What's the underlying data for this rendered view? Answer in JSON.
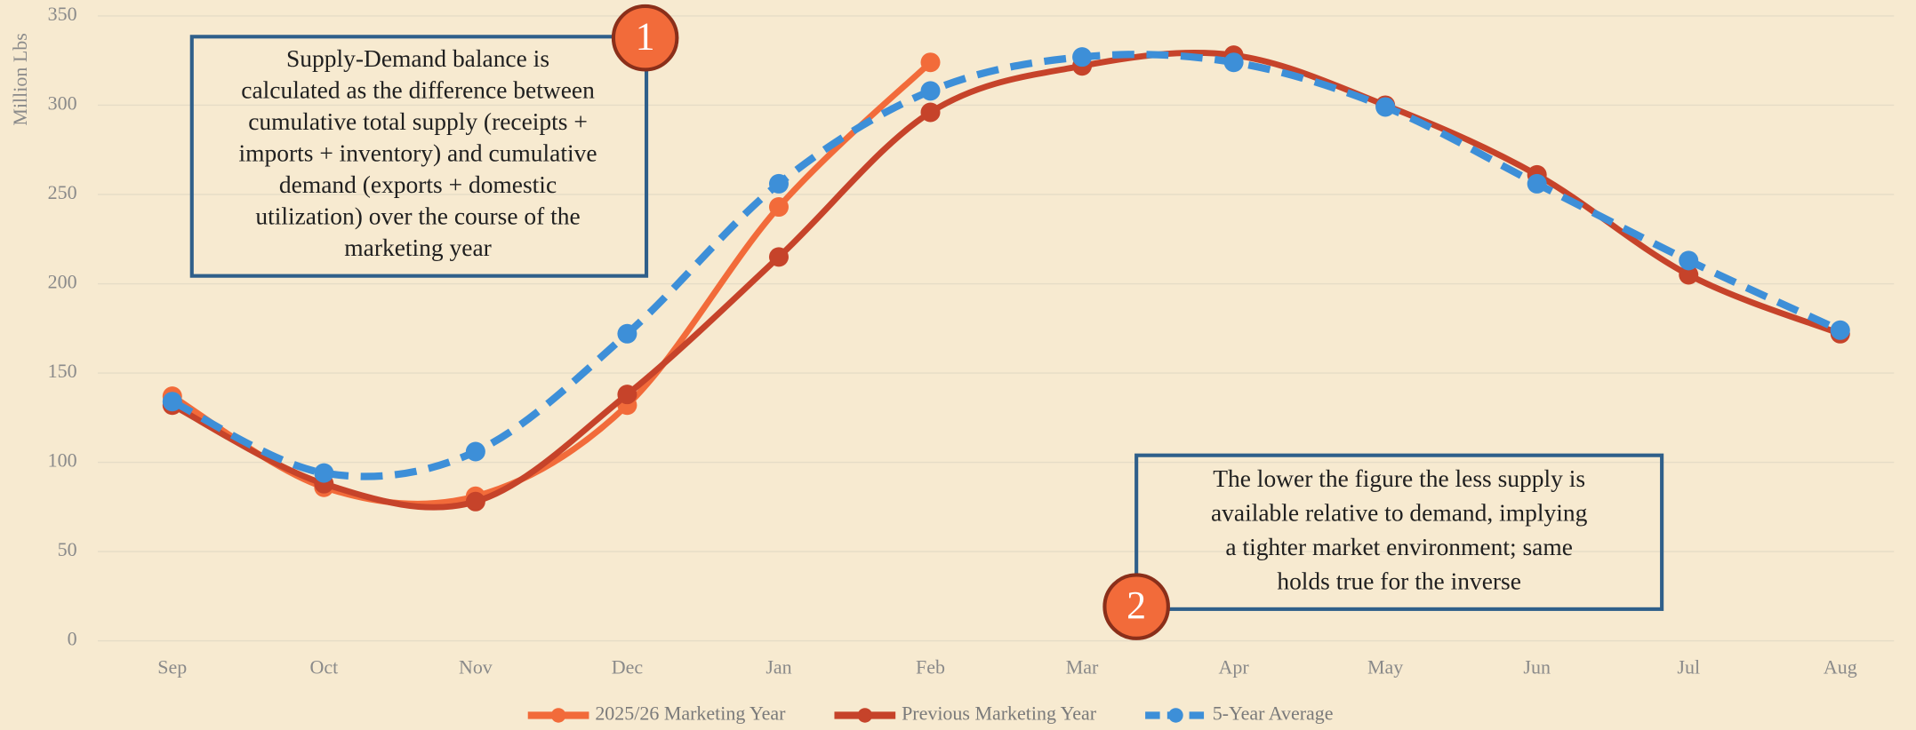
{
  "chart_data": {
    "type": "line",
    "y_label": "Million Lbs",
    "categories": [
      "Sep",
      "Oct",
      "Nov",
      "Dec",
      "Jan",
      "Feb",
      "Mar",
      "Apr",
      "May",
      "Jun",
      "Jul",
      "Aug"
    ],
    "series": [
      {
        "name": "2025/26 Marketing Year",
        "color": "#f26b3a",
        "dashed": false,
        "values": [
          137,
          86,
          81,
          132,
          243,
          324,
          null,
          null,
          null,
          null,
          null,
          null
        ]
      },
      {
        "name": "Previous Marketing Year",
        "color": "#c6432a",
        "dashed": false,
        "values": [
          132,
          88,
          78,
          138,
          215,
          296,
          322,
          328,
          300,
          261,
          205,
          172
        ]
      },
      {
        "name": "5-Year Average",
        "color": "#3d8fd8",
        "dashed": true,
        "values": [
          134,
          94,
          106,
          172,
          256,
          308,
          327,
          324,
          299,
          256,
          213,
          174
        ]
      }
    ],
    "ylim": [
      0,
      350
    ],
    "yticks": [
      0,
      50,
      100,
      150,
      200,
      250,
      300,
      350
    ],
    "grid": true,
    "smooth": true,
    "annotations": [
      {
        "badge": "1",
        "lines": [
          "Supply-Demand balance is",
          "calculated as the difference between",
          "cumulative total supply (receipts +",
          "imports + inventory) and cumulative",
          "demand (exports + domestic",
          "utilization) over the course of the",
          "marketing year"
        ]
      },
      {
        "badge": "2",
        "lines": [
          "The lower the figure the less supply is",
          "available relative to demand, implying",
          "a tighter market environment; same",
          "holds true for the inverse"
        ]
      }
    ]
  }
}
